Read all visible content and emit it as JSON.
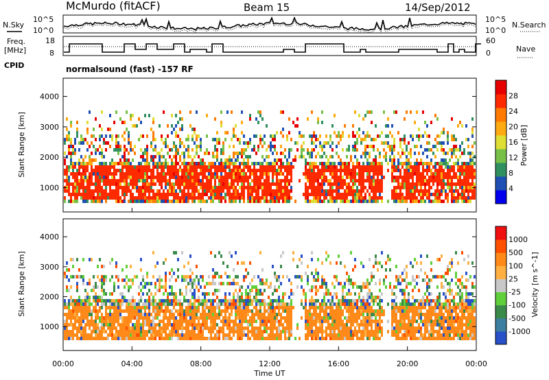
{
  "header": {
    "station": "McMurdo (fitACF)",
    "beam": "Beam 15",
    "date": "14/Sep/2012"
  },
  "noise_panel": {
    "left_label": "N.Sky",
    "right_label": "N.Search",
    "left_ticks": [
      "10^5",
      "10^0"
    ],
    "right_ticks": [
      "10^5",
      "10^0"
    ]
  },
  "freq_panel": {
    "left_label_line1": "Freq.",
    "left_label_line2": "[MHz]",
    "right_label": "Nave",
    "left_ticks": [
      "18",
      "8"
    ],
    "right_ticks": [
      "60",
      "0"
    ]
  },
  "cpid": {
    "label": "CPID",
    "text": "normalsound (fast) -157 RF"
  },
  "x_axis": {
    "title": "Time UT",
    "ticks": [
      "00:00",
      "04:00",
      "08:00",
      "12:00",
      "16:00",
      "20:00",
      "00:00"
    ]
  },
  "chart_data": [
    {
      "type": "heatmap",
      "name": "power",
      "xlabel": "Time UT",
      "ylabel": "Slant Range [km]",
      "y_ticks": [
        "1000",
        "2000",
        "3000",
        "4000"
      ],
      "ylim": [
        200,
        4600
      ],
      "colorbar_title": "Power [dB]",
      "colorbar_ticks": [
        "28",
        "24",
        "20",
        "16",
        "12",
        "8",
        "4"
      ],
      "colors": [
        "#0000ee",
        "#1e50b4",
        "#2f8f5f",
        "#77c047",
        "#dede35",
        "#ffaa10",
        "#ff7a00",
        "#ff2a00",
        "#e60000"
      ]
    },
    {
      "type": "heatmap",
      "name": "velocity",
      "xlabel": "Time UT",
      "ylabel": "Slant Range [km]",
      "y_ticks": [
        "1000",
        "2000",
        "3000",
        "4000"
      ],
      "ylim": [
        200,
        4600
      ],
      "colorbar_title": "Velocity [m s^-1]",
      "colorbar_ticks": [
        "1000",
        "500",
        "100",
        "25",
        "-25",
        "-100",
        "-500",
        "-1000"
      ],
      "colors": [
        "#2850c8",
        "#3c7fa0",
        "#3a8a4a",
        "#5fcf3a",
        "#c8c8c8",
        "#ffb040",
        "#ff8a1a",
        "#ff5000",
        "#f01010"
      ]
    }
  ]
}
